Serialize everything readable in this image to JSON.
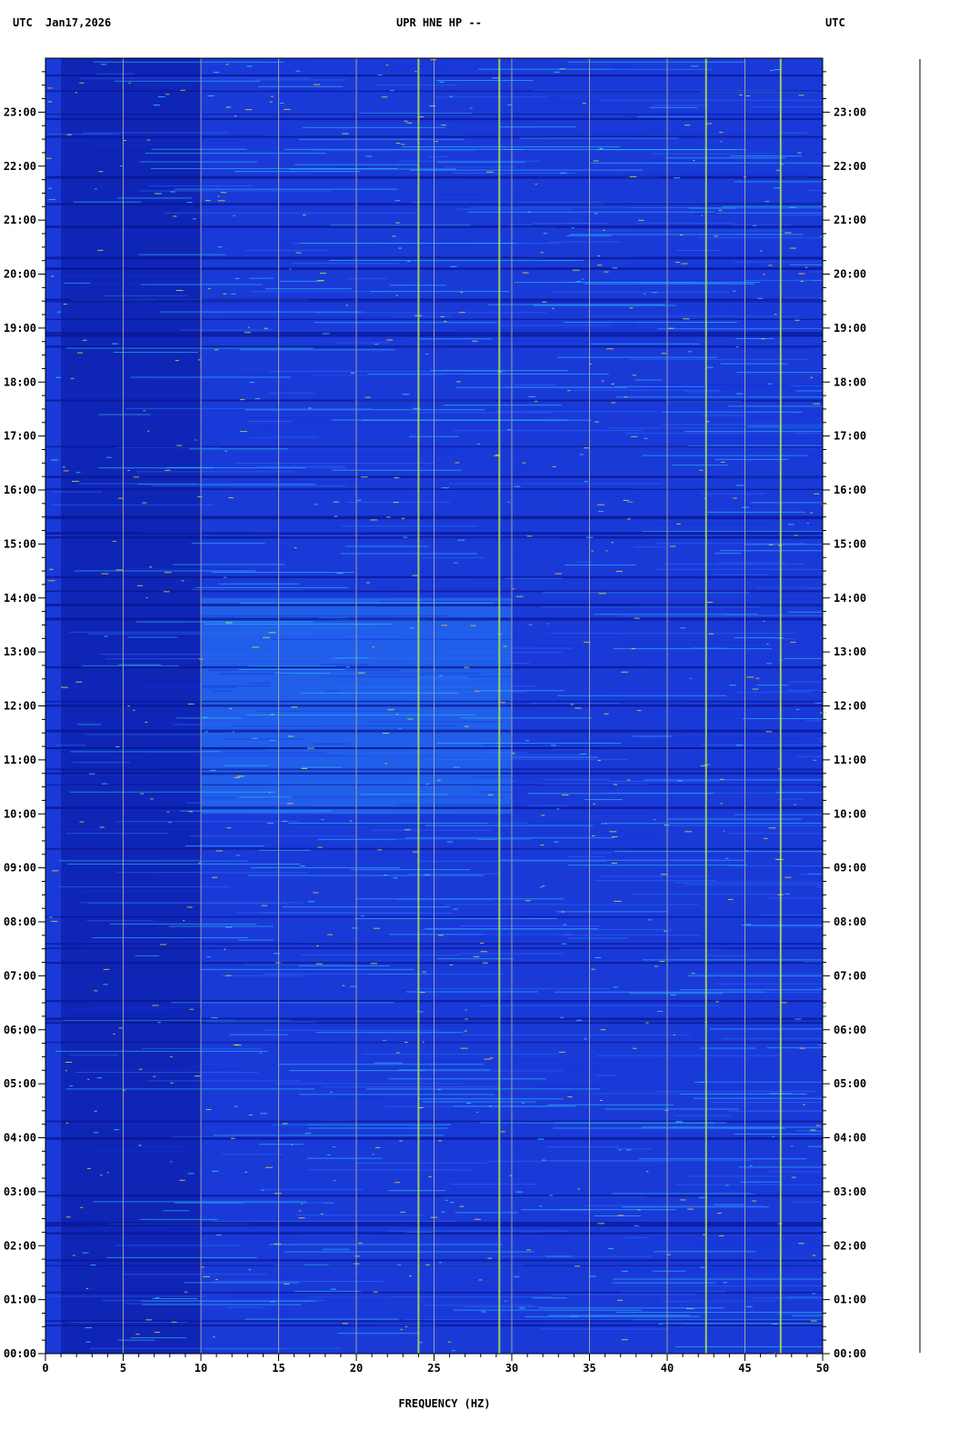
{
  "header": {
    "left_tz": "UTC",
    "date": "Jan17,2026",
    "station": "UPR HNE HP --",
    "right_tz": "UTC"
  },
  "chart_data": {
    "type": "heatmap",
    "title": "UPR HNE HP --",
    "xlabel": "FREQUENCY (HZ)",
    "ylabel": "",
    "xlim": [
      0,
      50
    ],
    "ylim": [
      "00:00",
      "24:00"
    ],
    "x_ticks": [
      "0",
      "5",
      "10",
      "15",
      "20",
      "25",
      "30",
      "35",
      "40",
      "45",
      "50"
    ],
    "y_ticks": [
      "00:00",
      "01:00",
      "02:00",
      "03:00",
      "04:00",
      "05:00",
      "06:00",
      "07:00",
      "08:00",
      "09:00",
      "10:00",
      "11:00",
      "12:00",
      "13:00",
      "14:00",
      "15:00",
      "16:00",
      "17:00",
      "18:00",
      "19:00",
      "20:00",
      "21:00",
      "22:00",
      "23:00"
    ],
    "grid": "vertical lines every 5 Hz",
    "colormap": [
      "#0a1aa0",
      "#1030e0",
      "#2a70ff",
      "#30d0ff",
      "#c0f040",
      "#ffd020",
      "#d02020"
    ],
    "background_color": "#1a3ad8",
    "features": [
      {
        "name": "persistent line",
        "freq_hz": 24.0
      },
      {
        "name": "persistent line",
        "freq_hz": 29.2
      },
      {
        "name": "persistent line",
        "freq_hz": 42.5
      },
      {
        "name": "persistent line",
        "freq_hz": 47.3
      },
      {
        "name": "broadband energy",
        "freq_range": [
          10,
          30
        ],
        "time_range": [
          "10:00",
          "14:00"
        ]
      }
    ]
  }
}
